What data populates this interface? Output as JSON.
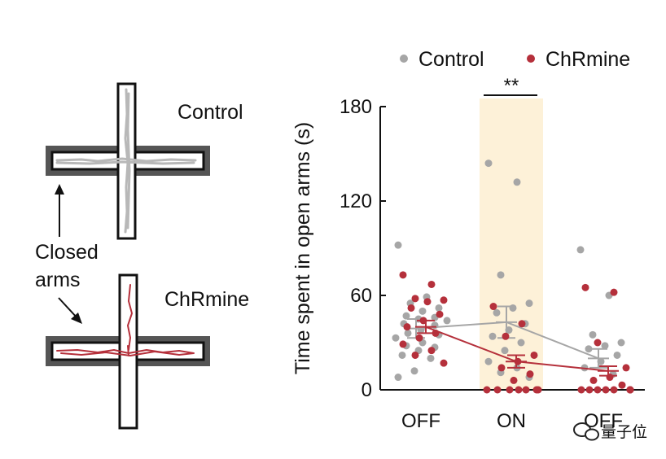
{
  "maze": {
    "control_label": "Control",
    "chrmine_label": "ChRmine",
    "closed_arms_line1": "Closed",
    "closed_arms_line2": "arms",
    "control_color": "#b8b8b8",
    "chrmine_color": "#b5303b",
    "closed_arm_color": "#555555"
  },
  "watermark": {
    "text": "量子位",
    "icon": "wechat-icon"
  },
  "chart_data": {
    "type": "scatter",
    "categories": [
      "OFF",
      "ON",
      "OFF"
    ],
    "ylabel": "Time spent in open arms (s)",
    "xlabel": "",
    "title": "",
    "ylim": [
      0,
      180
    ],
    "yticks": [
      "0",
      "60",
      "120",
      "180"
    ],
    "grid": false,
    "legend_position": "top",
    "highlight": {
      "category_index": 1,
      "color": "#fdf1d8"
    },
    "significance": {
      "category_index": 1,
      "label": "**"
    },
    "series": [
      {
        "name": "Control",
        "color": "#a6a6a6",
        "means": [
          39,
          43,
          20
        ],
        "sems": [
          6,
          10,
          6
        ],
        "points": [
          [
            92,
            59,
            55,
            52,
            50,
            47,
            46,
            45,
            44,
            42,
            41,
            38,
            36,
            35,
            33,
            30,
            28,
            27,
            25,
            22,
            20,
            12,
            8
          ],
          [
            144,
            132,
            73,
            55,
            52,
            49,
            42,
            38,
            34,
            30,
            25,
            18,
            14,
            11,
            8
          ],
          [
            89,
            60,
            35,
            30,
            28,
            26,
            22,
            18,
            14,
            10
          ]
        ]
      },
      {
        "name": "ChRmine",
        "color": "#b5303b",
        "means": [
          40,
          18,
          12
        ],
        "sems": [
          4,
          4,
          3
        ],
        "points": [
          [
            73,
            67,
            58,
            57,
            56,
            52,
            48,
            44,
            40,
            36,
            33,
            29,
            25,
            22,
            17
          ],
          [
            53,
            42,
            34,
            22,
            18,
            14,
            10,
            6,
            0,
            0,
            0,
            0,
            0,
            0,
            0
          ],
          [
            65,
            62,
            30,
            14,
            8,
            6,
            3,
            0,
            0,
            0,
            0,
            0,
            0,
            0,
            0,
            0
          ]
        ]
      }
    ]
  }
}
